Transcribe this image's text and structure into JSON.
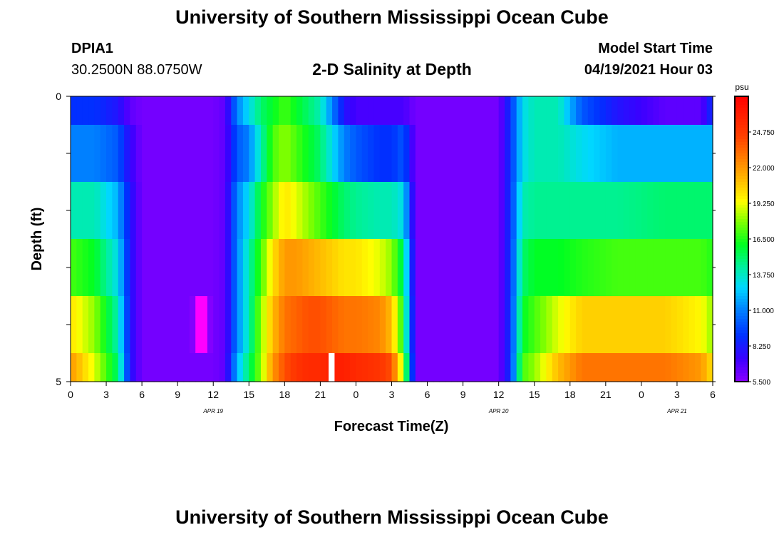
{
  "page": {
    "title": "University of Southern Mississippi Ocean Cube",
    "footer_title": "University of Southern Mississippi Ocean Cube",
    "station_id": "DPIA1",
    "station_coords": "30.2500N  88.0750W",
    "plot_title": "2-D Salinity at Depth",
    "model_start_label": "Model Start Time",
    "model_start_value": "04/19/2021 Hour 03"
  },
  "chart_data": {
    "type": "heatmap",
    "title": "2-D Salinity at Depth",
    "xlabel": "Forecast Time(Z)",
    "ylabel": "Depth (ft)",
    "x_hours_from_apr19_00z": [
      0,
      54
    ],
    "x_tick_hours": [
      0,
      3,
      6,
      9,
      12,
      15,
      18,
      21,
      24,
      27,
      30,
      33,
      36,
      39,
      42,
      45,
      48,
      51,
      54
    ],
    "x_tick_labels": [
      "0",
      "3",
      "6",
      "9",
      "12",
      "15",
      "18",
      "21",
      "0",
      "3",
      "6",
      "9",
      "12",
      "15",
      "18",
      "21",
      "0",
      "3",
      "6"
    ],
    "date_labels": [
      {
        "text": "APR 19",
        "hour": 12
      },
      {
        "text": "APR 20",
        "hour": 36
      },
      {
        "text": "APR 21",
        "hour": 51
      }
    ],
    "y_tick_labels": [
      "0",
      "5"
    ],
    "ylim": [
      0,
      5
    ],
    "colorbar": {
      "unit": "psu",
      "range": [
        5.5,
        27.5
      ],
      "tick_labels": [
        "24.750",
        "22.000",
        "19.250",
        "16.500",
        "13.750",
        "11.000",
        "8.250",
        "5.500"
      ],
      "tick_values": [
        24.75,
        22.0,
        19.25,
        16.5,
        13.75,
        11.0,
        8.25,
        5.5
      ]
    },
    "depth_levels_ft": [
      0.25,
      0.75,
      1.75,
      2.75,
      3.75,
      4.75
    ],
    "time_keyframes": [
      {
        "h": 0,
        "values": [
          9,
          11,
          14,
          17,
          20,
          22
        ]
      },
      {
        "h": 2,
        "values": [
          9,
          11,
          14,
          16,
          18,
          19
        ]
      },
      {
        "h": 4,
        "values": [
          8,
          10,
          12,
          13,
          14,
          15
        ]
      },
      {
        "h": 5,
        "values": [
          6.5,
          7.5,
          8,
          8,
          8,
          8
        ]
      },
      {
        "h": 6,
        "values": [
          6,
          6,
          6,
          6,
          6,
          6
        ]
      },
      {
        "h": 10,
        "values": [
          6,
          6,
          6,
          6,
          6,
          6
        ]
      },
      {
        "h": 10.5,
        "values": [
          6,
          6,
          6,
          6,
          5.3,
          6
        ]
      },
      {
        "h": 11.5,
        "values": [
          6,
          6,
          6,
          6,
          5.3,
          6
        ]
      },
      {
        "h": 12,
        "values": [
          6,
          6,
          6,
          6,
          6,
          6
        ]
      },
      {
        "h": 13,
        "values": [
          6.5,
          6.5,
          6.5,
          6.5,
          6.5,
          6.5
        ]
      },
      {
        "h": 14,
        "values": [
          11,
          10,
          11,
          11,
          11,
          12
        ]
      },
      {
        "h": 15,
        "values": [
          13,
          11,
          13,
          14,
          14,
          15
        ]
      },
      {
        "h": 16,
        "values": [
          15,
          14,
          16,
          17,
          18,
          18
        ]
      },
      {
        "h": 17,
        "values": [
          16,
          17,
          18,
          20,
          21,
          22
        ]
      },
      {
        "h": 18,
        "values": [
          17,
          18,
          20,
          22,
          23,
          24
        ]
      },
      {
        "h": 19,
        "values": [
          16,
          17,
          19,
          22,
          23.5,
          25
        ]
      },
      {
        "h": 20,
        "values": [
          15,
          16,
          18,
          21.5,
          24,
          25.5
        ]
      },
      {
        "h": 21,
        "values": [
          14,
          15,
          17,
          21,
          24,
          25.5
        ]
      },
      {
        "h": 22,
        "values": [
          11,
          13,
          16,
          20.5,
          23.5,
          26
        ]
      },
      {
        "h": 23,
        "values": [
          8,
          11,
          15,
          20,
          23,
          26
        ]
      },
      {
        "h": 24,
        "values": [
          7,
          10,
          14.5,
          20,
          23,
          25.5
        ]
      },
      {
        "h": 26,
        "values": [
          7,
          9,
          14,
          19,
          22.5,
          25
        ]
      },
      {
        "h": 27,
        "values": [
          7,
          9,
          14,
          18,
          21,
          24
        ]
      },
      {
        "h": 28,
        "values": [
          7,
          10,
          13,
          15,
          16,
          18
        ]
      },
      {
        "h": 29,
        "values": [
          6,
          6,
          6,
          6,
          6,
          6
        ]
      },
      {
        "h": 36,
        "values": [
          6,
          6,
          6,
          6,
          6,
          6
        ]
      },
      {
        "h": 37,
        "values": [
          9,
          9,
          9,
          9,
          9,
          9
        ]
      },
      {
        "h": 38,
        "values": [
          13,
          13,
          14,
          15,
          16,
          17
        ]
      },
      {
        "h": 39,
        "values": [
          14,
          14,
          14.5,
          16,
          17,
          18
        ]
      },
      {
        "h": 41,
        "values": [
          14,
          14,
          14.5,
          16,
          19,
          21
        ]
      },
      {
        "h": 43,
        "values": [
          10,
          13,
          14.5,
          16.5,
          20.5,
          23
        ]
      },
      {
        "h": 46,
        "values": [
          8,
          12,
          14.5,
          17,
          20.5,
          23
        ]
      },
      {
        "h": 50,
        "values": [
          6.5,
          12,
          15,
          17,
          20.5,
          23
        ]
      },
      {
        "h": 53,
        "values": [
          6.5,
          12,
          15,
          17,
          19.5,
          22
        ]
      },
      {
        "h": 54,
        "values": [
          9,
          12,
          15,
          16.5,
          18,
          20
        ]
      }
    ],
    "missing_data": [
      {
        "hour_start": 21.7,
        "hour_end": 22.2,
        "depth_min": 4.5,
        "depth_max": 5
      }
    ]
  }
}
